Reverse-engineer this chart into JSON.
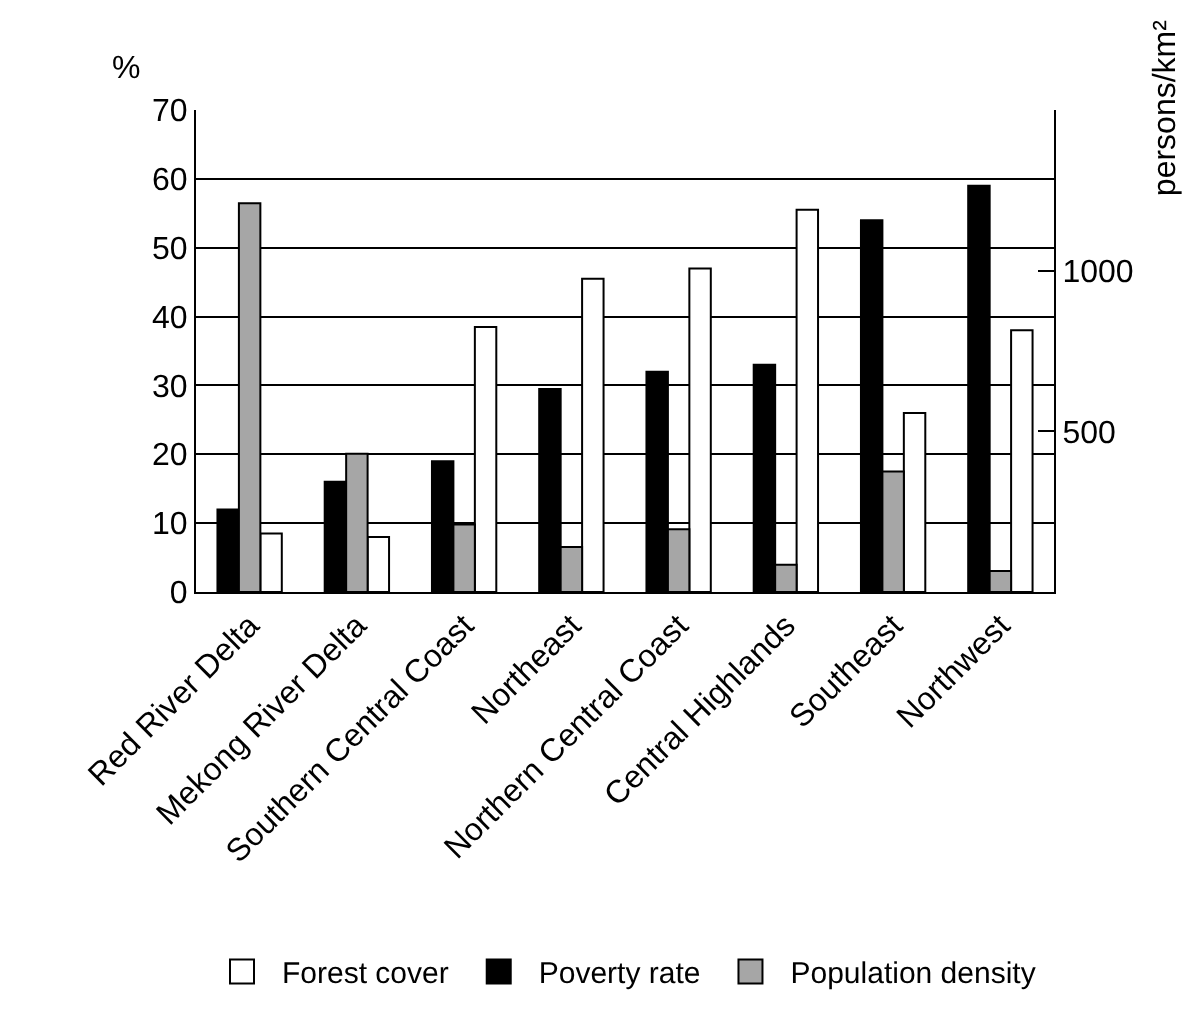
{
  "chart_data": {
    "type": "bar",
    "ylabel": "%",
    "y2label": "persons/km²",
    "categories": [
      "Red River Delta",
      "Mekong River Delta",
      "Southern Central Coast",
      "Northeast",
      "Northern Central Coast",
      "Central Highlands",
      "Southeast",
      "Northwest"
    ],
    "series": [
      {
        "name": "Forest cover",
        "color": "#ffffff",
        "values": [
          8.5,
          8,
          38.5,
          45.5,
          47,
          55.5,
          26,
          38
        ]
      },
      {
        "name": "Poverty rate",
        "color": "#000000",
        "values": [
          12,
          16,
          19,
          29.5,
          32,
          33,
          54,
          59
        ]
      },
      {
        "name": "Population density",
        "color": "#a6a6a6",
        "axis": "y2",
        "values": [
          1210,
          430,
          210,
          140,
          195,
          85,
          375,
          65
        ]
      }
    ],
    "ylim": [
      0,
      70
    ],
    "yticks": [
      0,
      10,
      20,
      30,
      40,
      50,
      60,
      70
    ],
    "y2lim": [
      0,
      1500
    ],
    "y2ticks": [
      500,
      1000
    ],
    "grid": "y",
    "legend": "bottom"
  }
}
